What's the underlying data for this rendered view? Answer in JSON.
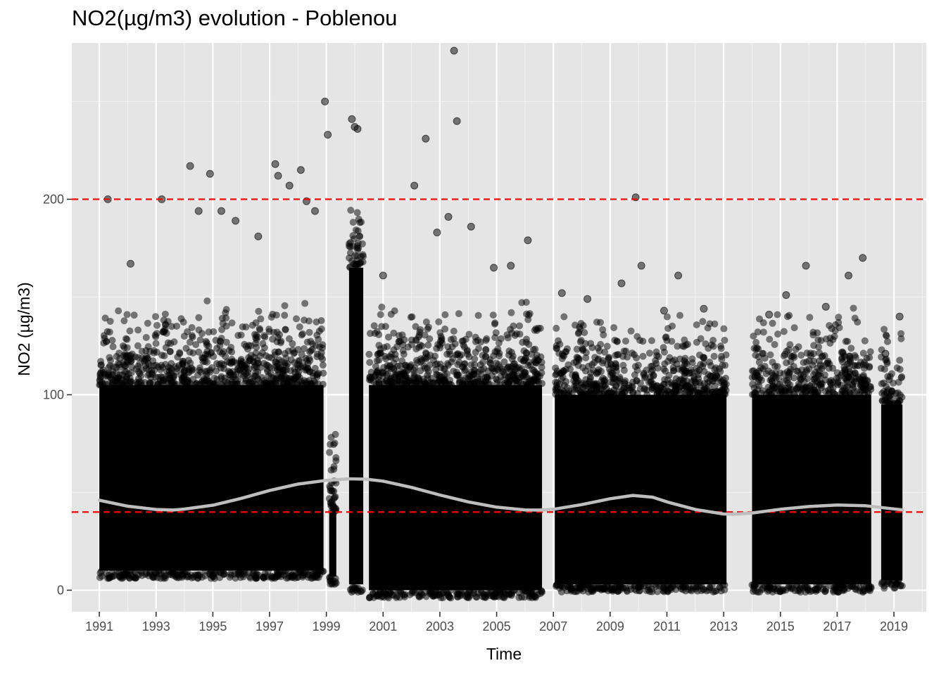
{
  "chart_data": {
    "type": "scatter",
    "title": "NO2(µg/m3) evolution - Poblenou",
    "xlabel": "Time",
    "ylabel": "NO2 (µg/m3)",
    "xlim": [
      1990.03,
      2020.14
    ],
    "ylim": [
      -11,
      280
    ],
    "x_ticks": [
      "1991",
      "1993",
      "1995",
      "1997",
      "1999",
      "2001",
      "2003",
      "2005",
      "2007",
      "2009",
      "2011",
      "2013",
      "2015",
      "2017",
      "2019"
    ],
    "y_ticks": [
      0,
      100,
      200
    ],
    "grid": true,
    "legend": "none",
    "reference_lines": [
      {
        "y": 200,
        "color": "#ff0000",
        "style": "dashed"
      },
      {
        "y": 40,
        "color": "#ff0000",
        "style": "dashed"
      }
    ],
    "data_segments": [
      {
        "start": 1991.0,
        "end": 1998.9,
        "ymin": 10,
        "ymax": 105
      },
      {
        "start": 1999.1,
        "end": 1999.35,
        "ymin": 7,
        "ymax": 40
      },
      {
        "start": 1999.8,
        "end": 2000.3,
        "ymin": 3,
        "ymax": 165
      },
      {
        "start": 2000.5,
        "end": 2006.6,
        "ymin": 0,
        "ymax": 105
      },
      {
        "start": 2007.05,
        "end": 2013.1,
        "ymin": 3,
        "ymax": 100
      },
      {
        "start": 2014.0,
        "end": 2018.2,
        "ymin": 3,
        "ymax": 100
      },
      {
        "start": 2018.55,
        "end": 2019.3,
        "ymin": 5,
        "ymax": 95
      }
    ],
    "outliers": {
      "x": [
        1991.3,
        1992.1,
        1993.2,
        1994.2,
        1994.5,
        1994.9,
        1995.3,
        1995.8,
        1996.6,
        1997.2,
        1997.3,
        1997.7,
        1998.1,
        1998.3,
        1998.6,
        1998.95,
        1999.05,
        1999.9,
        2000.0,
        2000.1,
        2001.0,
        2002.1,
        2002.5,
        2002.9,
        2003.3,
        2003.5,
        2003.6,
        2004.1,
        2004.9,
        2005.5,
        2006.1,
        2007.3,
        2008.2,
        2009.4,
        2009.9,
        2010.1,
        2010.9,
        2011.4,
        2012.3,
        2014.6,
        2015.2,
        2015.9,
        2016.6,
        2017.4,
        2017.9,
        2018.7,
        2019.2
      ],
      "y": [
        200,
        167,
        200,
        217,
        194,
        213,
        194,
        189,
        181,
        218,
        212,
        207,
        215,
        199,
        194,
        250,
        233,
        241,
        237,
        236,
        161,
        207,
        231,
        183,
        191,
        276,
        240,
        186,
        165,
        166,
        179,
        152,
        149,
        157,
        201,
        166,
        143,
        161,
        144,
        141,
        151,
        166,
        145,
        161,
        170,
        121,
        140
      ]
    },
    "trend": {
      "name": "smooth",
      "color": "#bebebe",
      "x": [
        1991,
        1992,
        1993,
        1993.6,
        1994,
        1995,
        1996,
        1997,
        1998,
        1999,
        1999.8,
        2000.4,
        2001,
        2002,
        2003,
        2004,
        2005,
        2006,
        2006.6,
        2007,
        2008,
        2009,
        2009.8,
        2010.5,
        2011,
        2012,
        2013,
        2013.4,
        2014,
        2015,
        2016,
        2017,
        2018,
        2019,
        2019.3
      ],
      "y": [
        46,
        43,
        41.3,
        41,
        41.5,
        43.5,
        47,
        51,
        54.3,
        56.2,
        57,
        56.8,
        55.8,
        52.6,
        48.7,
        45.2,
        42.5,
        41.1,
        41,
        41.4,
        43.8,
        46.8,
        48.5,
        47.6,
        45.2,
        41.3,
        39,
        38.9,
        39.5,
        41.4,
        42.8,
        43.6,
        43.2,
        41.6,
        41.1
      ]
    },
    "point_color": "#000000"
  }
}
